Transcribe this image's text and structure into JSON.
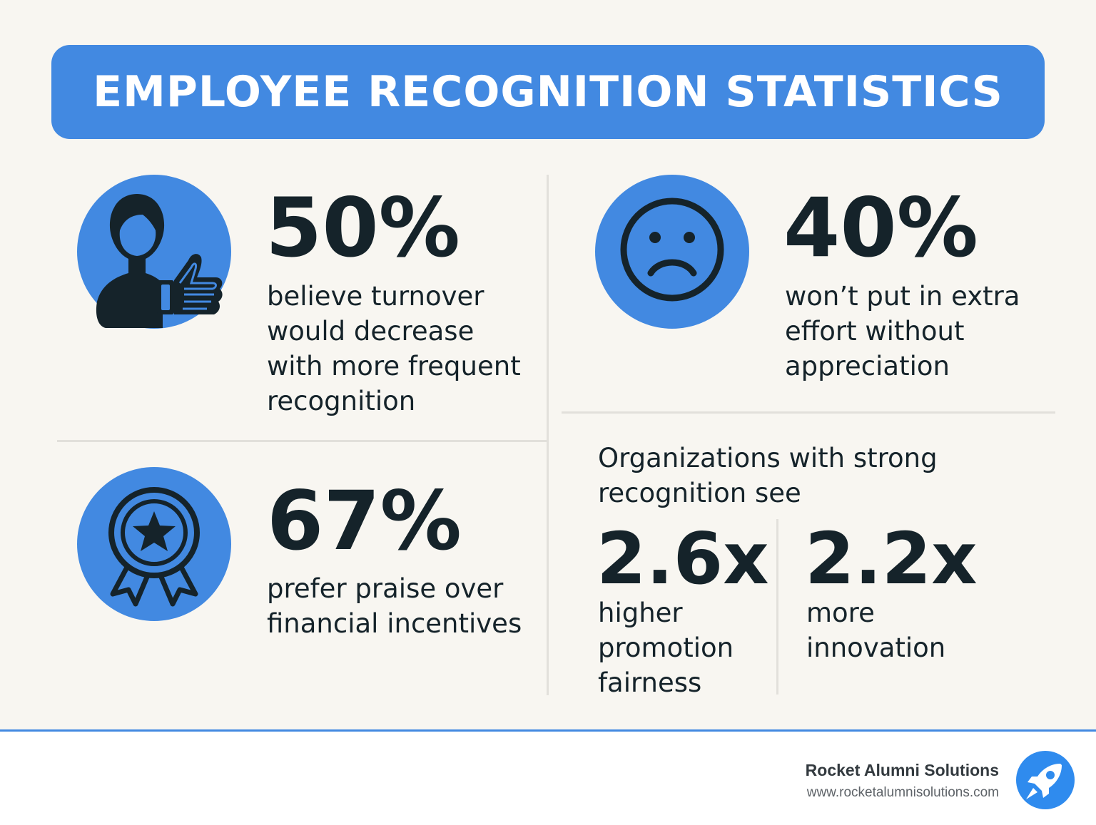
{
  "header": {
    "title": "EMPLOYEE RECOGNITION STATISTICS"
  },
  "stats": {
    "turnover": {
      "value": "50%",
      "lines": [
        "believe turnover",
        "would decrease",
        "with more frequent",
        "recognition"
      ],
      "icon": "person-thumbs-up-icon"
    },
    "effort": {
      "value": "40%",
      "lines": [
        "won’t put in extra",
        "effort without",
        "appreciation"
      ],
      "icon": "sad-face-icon"
    },
    "praise": {
      "value": "67%",
      "lines": [
        "prefer praise over",
        "financial incentives"
      ],
      "icon": "award-ribbon-icon"
    }
  },
  "organizations": {
    "intro_lines": [
      "Organizations with strong",
      "recognition see"
    ],
    "promotion": {
      "value": "2.6x",
      "lines": [
        "higher",
        "promotion",
        "fairness"
      ]
    },
    "innovation": {
      "value": "2.2x",
      "lines": [
        "more",
        "innovation"
      ]
    }
  },
  "footer": {
    "brand": "Rocket Alumni Solutions",
    "url": "www.rocketalumnisolutions.com",
    "logo_icon": "rocket-icon"
  },
  "colors": {
    "accent": "#4289e1",
    "text": "#15232a",
    "background": "#f8f6f1"
  }
}
